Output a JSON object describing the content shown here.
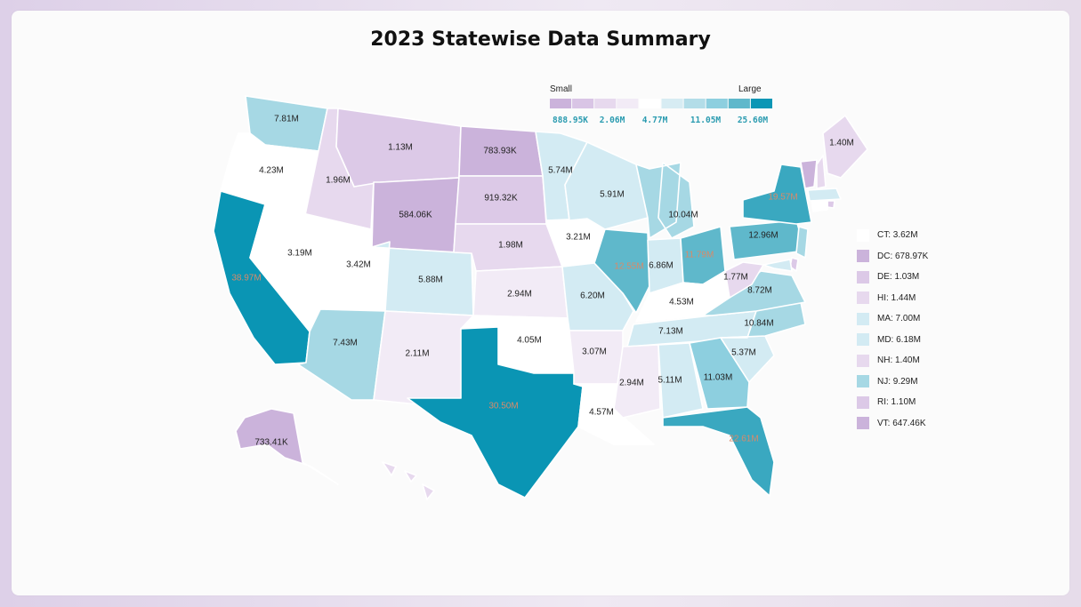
{
  "title": "2023 Statewise Data Summary",
  "colorbar": {
    "min_label": "Small",
    "max_label": "Large",
    "ticks": [
      "888.95K",
      "2.06M",
      "4.77M",
      "11.05M",
      "25.60M"
    ],
    "colors": [
      "#cbb3db",
      "#d9c5e5",
      "#e7d9ee",
      "#f2ebf6",
      "#ffffff",
      "#d7ecf3",
      "#b3dde8",
      "#8dcfdf",
      "#5fb8cb",
      "#0b96b5"
    ]
  },
  "chart_data": {
    "type": "choropleth",
    "title": "2023 Statewise Data Summary",
    "scale": "log",
    "states": [
      {
        "id": "WA",
        "label": "7.81M",
        "value": 7.81,
        "color": "#a6d8e4"
      },
      {
        "id": "OR",
        "label": "4.23M",
        "value": 4.23,
        "color": "#ffffff"
      },
      {
        "id": "CA",
        "label": "38.97M",
        "value": 38.97,
        "color": "#0a95b4",
        "hl": true
      },
      {
        "id": "ID",
        "label": "1.96M",
        "value": 1.96,
        "color": "#e7d9ee"
      },
      {
        "id": "NV",
        "label": "3.19M",
        "value": 3.19,
        "color": "#ffffff"
      },
      {
        "id": "UT",
        "label": "3.42M",
        "value": 3.42,
        "color": "#ffffff"
      },
      {
        "id": "AZ",
        "label": "7.43M",
        "value": 7.43,
        "color": "#a6d8e4"
      },
      {
        "id": "MT",
        "label": "1.13M",
        "value": 1.13,
        "color": "#dcc9e7"
      },
      {
        "id": "WY",
        "label": "584.06K",
        "value": 0.584,
        "color": "#cbb3db"
      },
      {
        "id": "CO",
        "label": "5.88M",
        "value": 5.88,
        "color": "#d3ebf3"
      },
      {
        "id": "NM",
        "label": "2.11M",
        "value": 2.11,
        "color": "#f2ebf6"
      },
      {
        "id": "ND",
        "label": "783.93K",
        "value": 0.784,
        "color": "#cbb3db"
      },
      {
        "id": "SD",
        "label": "919.32K",
        "value": 0.919,
        "color": "#dcc9e7"
      },
      {
        "id": "NE",
        "label": "1.98M",
        "value": 1.98,
        "color": "#e7d9ee"
      },
      {
        "id": "KS",
        "label": "2.94M",
        "value": 2.94,
        "color": "#f2ebf6"
      },
      {
        "id": "OK",
        "label": "4.05M",
        "value": 4.05,
        "color": "#ffffff"
      },
      {
        "id": "TX",
        "label": "30.50M",
        "value": 30.5,
        "color": "#0a95b4",
        "hl": true
      },
      {
        "id": "MN",
        "label": "5.74M",
        "value": 5.74,
        "color": "#d3ebf3"
      },
      {
        "id": "IA",
        "label": "3.21M",
        "value": 3.21,
        "color": "#ffffff"
      },
      {
        "id": "MO",
        "label": "6.20M",
        "value": 6.2,
        "color": "#d3ebf3"
      },
      {
        "id": "AR",
        "label": "3.07M",
        "value": 3.07,
        "color": "#f2ebf6"
      },
      {
        "id": "LA",
        "label": "4.57M",
        "value": 4.57,
        "color": "#ffffff"
      },
      {
        "id": "WI",
        "label": "5.91M",
        "value": 5.91,
        "color": "#d3ebf3"
      },
      {
        "id": "IL",
        "label": "12.55M",
        "value": 12.55,
        "color": "#5fb8cb",
        "hl": true
      },
      {
        "id": "MI",
        "label": "10.04M",
        "value": 10.04,
        "color": "#a6d8e4"
      },
      {
        "id": "IN",
        "label": "6.86M",
        "value": 6.86,
        "color": "#d3ebf3"
      },
      {
        "id": "OH",
        "label": "11.79M",
        "value": 11.79,
        "color": "#5fb8cb",
        "hl": true
      },
      {
        "id": "KY",
        "label": "4.53M",
        "value": 4.53,
        "color": "#ffffff"
      },
      {
        "id": "TN",
        "label": "7.13M",
        "value": 7.13,
        "color": "#d3ebf3"
      },
      {
        "id": "MS",
        "label": "2.94M",
        "value": 2.94,
        "color": "#f2ebf6"
      },
      {
        "id": "AL",
        "label": "5.11M",
        "value": 5.11,
        "color": "#d3ebf3"
      },
      {
        "id": "GA",
        "label": "11.03M",
        "value": 11.03,
        "color": "#8dcfdf"
      },
      {
        "id": "FL",
        "label": "22.61M",
        "value": 22.61,
        "color": "#3aa8c0",
        "hl": true
      },
      {
        "id": "SC",
        "label": "5.37M",
        "value": 5.37,
        "color": "#d3ebf3"
      },
      {
        "id": "NC",
        "label": "10.84M",
        "value": 10.84,
        "color": "#a6d8e4"
      },
      {
        "id": "VA",
        "label": "8.72M",
        "value": 8.72,
        "color": "#a6d8e4"
      },
      {
        "id": "WV",
        "label": "1.77M",
        "value": 1.77,
        "color": "#e7d9ee"
      },
      {
        "id": "PA",
        "label": "12.96M",
        "value": 12.96,
        "color": "#5fb8cb"
      },
      {
        "id": "NY",
        "label": "19.57M",
        "value": 19.57,
        "color": "#3aa8c0",
        "hl": true
      },
      {
        "id": "ME",
        "label": "1.40M",
        "value": 1.4,
        "color": "#e7d9ee"
      },
      {
        "id": "NH",
        "label": "",
        "value": 1.4,
        "color": "#e7d9ee"
      },
      {
        "id": "VT",
        "label": "",
        "value": 0.647,
        "color": "#cbb3db"
      },
      {
        "id": "MA",
        "label": "",
        "value": 7.0,
        "color": "#d3ebf3"
      },
      {
        "id": "RI",
        "label": "",
        "value": 1.1,
        "color": "#dcc9e7"
      },
      {
        "id": "CT",
        "label": "",
        "value": 3.62,
        "color": "#ffffff"
      },
      {
        "id": "NJ",
        "label": "",
        "value": 9.29,
        "color": "#a6d8e4"
      },
      {
        "id": "DE",
        "label": "",
        "value": 1.03,
        "color": "#dcc9e7"
      },
      {
        "id": "MD",
        "label": "",
        "value": 6.18,
        "color": "#d3ebf3"
      },
      {
        "id": "AK",
        "label": "733.41K",
        "value": 0.733,
        "color": "#cbb3db"
      },
      {
        "id": "HI",
        "label": "",
        "value": 1.44,
        "color": "#e7d9ee"
      }
    ],
    "legend": [
      {
        "text": "CT: 3.62M",
        "color": "#ffffff"
      },
      {
        "text": "DC: 678.97K",
        "color": "#cbb3db"
      },
      {
        "text": "DE: 1.03M",
        "color": "#dcc9e7"
      },
      {
        "text": "HI: 1.44M",
        "color": "#e7d9ee"
      },
      {
        "text": "MA: 7.00M",
        "color": "#d3ebf3"
      },
      {
        "text": "MD: 6.18M",
        "color": "#d3ebf3"
      },
      {
        "text": "NH: 1.40M",
        "color": "#e7d9ee"
      },
      {
        "text": "NJ: 9.29M",
        "color": "#a6d8e4"
      },
      {
        "text": "RI: 1.10M",
        "color": "#dcc9e7"
      },
      {
        "text": "VT: 647.46K",
        "color": "#cbb3db"
      }
    ]
  }
}
